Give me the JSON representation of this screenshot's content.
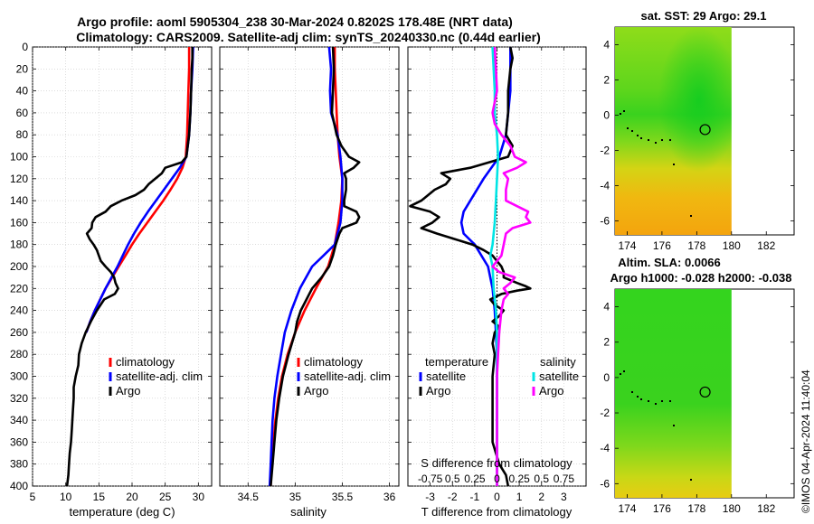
{
  "title_line1": "Argo profile: aoml 5905304_238 30-Mar-2024 0.8202S 178.48E (NRT data)",
  "title_line2": "Climatology: CARS2009. Satellite-adj clim: synTS_20240330.nc (0.44d earlier)",
  "footer": "©IMOS 04-Apr-2024 11:40:04",
  "colors": {
    "argo": "#000000",
    "climatology": "#ff0000",
    "satellite_adj": "#0000ff",
    "sal_satellite": "#00e5e5",
    "sal_argo": "#ff00ff"
  },
  "chart_data": [
    {
      "id": "temperature",
      "type": "line",
      "xlabel": "temperature (deg C)",
      "xlim": [
        5,
        32
      ],
      "ylim": [
        0,
        400
      ],
      "xticks": [
        5,
        10,
        15,
        20,
        25,
        30
      ],
      "yticks": [
        0,
        20,
        40,
        60,
        80,
        100,
        120,
        140,
        160,
        180,
        200,
        220,
        240,
        260,
        280,
        300,
        320,
        340,
        360,
        380,
        400
      ],
      "grid": true,
      "legend": [
        "climatology",
        "satellite-adj. clim",
        "Argo"
      ],
      "series": [
        {
          "name": "climatology",
          "color": "#ff0000",
          "depth": [
            0,
            20,
            40,
            60,
            80,
            100,
            110,
            120,
            130,
            140,
            150,
            160,
            170,
            180,
            190,
            200,
            210,
            220,
            230,
            240,
            250,
            260
          ],
          "values": [
            28.6,
            28.6,
            28.5,
            28.4,
            28.3,
            28.1,
            27.6,
            26.8,
            25.8,
            24.7,
            23.5,
            22.3,
            21.1,
            20.0,
            19.0,
            18.0,
            17.0,
            16.0,
            15.2,
            14.4,
            13.7,
            13.1
          ]
        },
        {
          "name": "satellite-adj. clim",
          "color": "#0000ff",
          "depth": [
            0,
            20,
            40,
            60,
            80,
            100,
            110,
            120,
            130,
            140,
            150,
            160,
            170,
            180,
            190,
            200,
            210,
            220,
            230,
            240,
            250,
            260
          ],
          "values": [
            29.2,
            29.1,
            28.9,
            28.8,
            28.6,
            28.2,
            27.2,
            26.0,
            24.8,
            23.6,
            22.4,
            21.3,
            20.3,
            19.4,
            18.6,
            17.8,
            16.9,
            16.0,
            15.2,
            14.4,
            13.7,
            13.1
          ]
        },
        {
          "name": "Argo",
          "color": "#000000",
          "depth": [
            0,
            10,
            20,
            40,
            60,
            80,
            100,
            105,
            110,
            115,
            120,
            125,
            130,
            135,
            140,
            145,
            150,
            155,
            160,
            165,
            170,
            175,
            180,
            185,
            190,
            195,
            200,
            205,
            210,
            215,
            220,
            225,
            230,
            240,
            250,
            260,
            270,
            280,
            290,
            300,
            310,
            320,
            330,
            340,
            350,
            360,
            370,
            380,
            390,
            400
          ],
          "values": [
            29.1,
            29.1,
            29.0,
            28.9,
            28.8,
            28.6,
            28.2,
            27.5,
            25.0,
            24.5,
            23.5,
            22.5,
            21.8,
            20.5,
            18.4,
            16.8,
            16.0,
            14.5,
            14.0,
            13.9,
            13.2,
            13.6,
            14.2,
            14.7,
            15.0,
            15.3,
            16.0,
            16.8,
            17.3,
            17.5,
            17.9,
            17.4,
            15.8,
            14.7,
            13.8,
            13.0,
            12.4,
            12.0,
            11.9,
            11.5,
            11.2,
            11.2,
            11.1,
            11.0,
            10.9,
            10.8,
            10.6,
            10.5,
            10.4,
            10.2
          ]
        }
      ]
    },
    {
      "id": "salinity",
      "type": "line",
      "xlabel": "salinity",
      "xlim": [
        34.2,
        36.1
      ],
      "ylim": [
        0,
        400
      ],
      "xticks": [
        34.5,
        35,
        35.5,
        36
      ],
      "xticklabels": [
        "34.5",
        "35",
        "35.5",
        "36"
      ],
      "grid": true,
      "legend": [
        "climatology",
        "satellite-adj. clim",
        "Argo"
      ],
      "series": [
        {
          "name": "climatology",
          "color": "#ff0000",
          "depth": [
            0,
            20,
            40,
            60,
            80,
            100,
            120,
            140,
            160,
            180,
            200,
            220,
            240,
            260,
            280,
            300,
            320,
            340,
            360,
            380,
            400
          ],
          "values": [
            35.42,
            35.42,
            35.43,
            35.44,
            35.45,
            35.47,
            35.5,
            35.49,
            35.46,
            35.42,
            35.35,
            35.22,
            35.1,
            35.0,
            34.92,
            34.86,
            34.82,
            34.79,
            34.77,
            34.75,
            34.74
          ]
        },
        {
          "name": "satellite-adj. clim",
          "color": "#0000ff",
          "depth": [
            0,
            20,
            40,
            60,
            80,
            100,
            120,
            140,
            160,
            180,
            190,
            200,
            220,
            240,
            260,
            280,
            300,
            320,
            340,
            360,
            380,
            400
          ],
          "values": [
            35.36,
            35.38,
            35.37,
            35.38,
            35.45,
            35.48,
            35.5,
            35.5,
            35.48,
            35.42,
            35.3,
            35.18,
            35.05,
            34.96,
            34.89,
            34.85,
            34.81,
            34.78,
            34.76,
            34.75,
            34.74,
            34.73
          ]
        },
        {
          "name": "Argo",
          "color": "#000000",
          "depth": [
            0,
            20,
            40,
            60,
            80,
            90,
            100,
            105,
            110,
            115,
            120,
            130,
            140,
            145,
            150,
            155,
            160,
            165,
            170,
            180,
            190,
            200,
            210,
            220,
            230,
            240,
            250,
            260,
            280,
            300,
            320,
            340,
            360,
            380,
            400
          ],
          "values": [
            35.4,
            35.41,
            35.4,
            35.39,
            35.44,
            35.49,
            35.57,
            35.68,
            35.62,
            35.52,
            35.54,
            35.54,
            35.52,
            35.52,
            35.65,
            35.68,
            35.65,
            35.5,
            35.47,
            35.43,
            35.4,
            35.36,
            35.28,
            35.18,
            35.12,
            35.06,
            35.02,
            35.0,
            34.93,
            34.87,
            34.83,
            34.8,
            34.78,
            34.76,
            34.74
          ]
        }
      ]
    },
    {
      "id": "difference",
      "type": "line",
      "xlabel": "T difference from climatology",
      "xlim": [
        -4,
        4
      ],
      "ylim": [
        0,
        400
      ],
      "xticks": [
        -3,
        -2,
        -1,
        0,
        1,
        2,
        3
      ],
      "top_axis_label": "S difference from climatology",
      "top_ticklabels": [
        "-0.75",
        "0.5",
        "0.25",
        "0",
        "0.25",
        "0.5",
        "0.75"
      ],
      "top_ticks": [
        -3,
        -2,
        -1,
        0,
        1,
        2,
        3
      ],
      "legend_headers": [
        "temperature",
        "salinity"
      ],
      "legend": [
        "satellite",
        "Argo",
        "satellite",
        "Argo"
      ],
      "series": [
        {
          "name": "temperature satellite",
          "color": "#0000ff",
          "depth": [
            0,
            40,
            80,
            100,
            120,
            140,
            150,
            160,
            170,
            180,
            190,
            200,
            220,
            240,
            260,
            280,
            300,
            340,
            400
          ],
          "values": [
            0.6,
            0.6,
            0.4,
            0.1,
            -0.6,
            -1.2,
            -1.5,
            -1.6,
            -1.5,
            -1.0,
            -0.7,
            -0.4,
            -0.2,
            -0.1,
            -0.05,
            0.0,
            0.0,
            0.0,
            0.0
          ]
        },
        {
          "name": "temperature Argo",
          "color": "#000000",
          "depth": [
            0,
            10,
            20,
            40,
            60,
            80,
            90,
            100,
            110,
            115,
            120,
            125,
            130,
            140,
            145,
            150,
            155,
            160,
            165,
            170,
            175,
            180,
            185,
            190,
            195,
            200,
            205,
            210,
            215,
            218,
            220,
            222,
            225,
            230,
            235,
            240,
            245,
            250,
            255,
            260,
            270,
            280,
            300,
            320,
            340,
            360,
            380,
            390,
            400
          ],
          "values": [
            0.6,
            0.7,
            0.6,
            0.5,
            0.5,
            0.4,
            0.7,
            0.5,
            -1.2,
            -2.5,
            -2.1,
            -2.3,
            -2.8,
            -3.4,
            -3.9,
            -3.0,
            -2.6,
            -2.9,
            -3.4,
            -2.7,
            -1.9,
            -1.1,
            -0.6,
            -0.2,
            0.0,
            0.2,
            0.3,
            0.3,
            0.9,
            1.3,
            1.5,
            0.9,
            0.2,
            -0.3,
            -0.1,
            0.3,
            0.1,
            -0.2,
            0.1,
            -0.1,
            -0.2,
            -0.1,
            -0.2,
            -0.2,
            -0.2,
            -0.2,
            0.1,
            0.4,
            0.5
          ]
        },
        {
          "name": "salinity satellite",
          "color": "#00e5e5",
          "depth": [
            0,
            20,
            40,
            60,
            80,
            100,
            120,
            140,
            160,
            180,
            190,
            200,
            220,
            240,
            260,
            280,
            300,
            320,
            340,
            360,
            380,
            400
          ],
          "values": [
            -0.2,
            -0.15,
            -0.1,
            -0.1,
            0.0,
            0.05,
            0.0,
            -0.05,
            -0.1,
            -0.2,
            -0.3,
            -0.2,
            -0.15,
            -0.05,
            0.0,
            0.0,
            0.0,
            0.0,
            0.0,
            0.0,
            0.0,
            0.0
          ]
        },
        {
          "name": "salinity Argo",
          "color": "#ff00ff",
          "depth": [
            0,
            20,
            40,
            60,
            70,
            80,
            90,
            100,
            105,
            110,
            115,
            120,
            130,
            140,
            150,
            155,
            160,
            165,
            170,
            180,
            190,
            200,
            205,
            210,
            215,
            220,
            225,
            230,
            240,
            250,
            260,
            280,
            300,
            320,
            340,
            360,
            380,
            400
          ],
          "values": [
            -0.1,
            -0.05,
            0.0,
            -0.2,
            -0.1,
            0.2,
            0.6,
            0.8,
            1.3,
            0.9,
            0.3,
            0.5,
            0.4,
            0.4,
            1.4,
            1.3,
            1.5,
            0.7,
            0.4,
            0.3,
            0.2,
            -0.2,
            0.1,
            0.8,
            0.6,
            0.3,
            0.5,
            0.3,
            0.2,
            0.15,
            0.1,
            0.05,
            0.0,
            0.0,
            0.0,
            0.0,
            0.0,
            0.0
          ]
        }
      ]
    },
    {
      "id": "sst_map",
      "type": "heatmap",
      "title": "sat. SST: 29 Argo: 29.1",
      "xlim": [
        173.3,
        183.6
      ],
      "ylim": [
        -6.8,
        5
      ],
      "xticks": [
        174,
        176,
        178,
        180,
        182
      ],
      "yticks": [
        4,
        2,
        0,
        -2,
        -4,
        -6
      ],
      "data_xmax": 180,
      "marker": {
        "lon": 178.48,
        "lat": -0.82
      }
    },
    {
      "id": "sla_map",
      "type": "heatmap",
      "title_line1": "Altim. SLA: 0.0066",
      "title_line2": "Argo h1000: -0.028 h2000: -0.038",
      "xlim": [
        173.3,
        183.6
      ],
      "ylim": [
        -6.8,
        5
      ],
      "xticks": [
        174,
        176,
        178,
        180,
        182
      ],
      "yticks": [
        4,
        2,
        0,
        -2,
        -4,
        -6
      ],
      "data_xmax": 180,
      "marker": {
        "lon": 178.48,
        "lat": -0.82
      }
    }
  ]
}
